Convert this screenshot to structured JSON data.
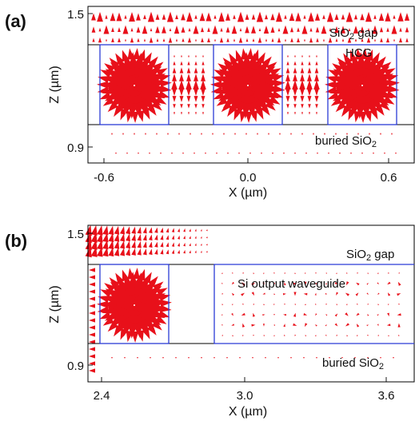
{
  "panel_a": {
    "letter": "(a)",
    "xlabel": "X (µm)",
    "ylabel": "Z (µm)",
    "xticks": [
      "-0.6",
      "0.0",
      "0.6"
    ],
    "yticks": [
      "1.5",
      "0.9"
    ],
    "regions": {
      "gap": "SiO",
      "gap_sub": "2",
      "gap_rest": " gap",
      "hcg": "HCG",
      "buried": "buried SiO",
      "buried_sub": "2"
    }
  },
  "panel_b": {
    "letter": "(b)",
    "xlabel": "X (µm)",
    "ylabel": "Z (µm)",
    "xticks": [
      "2.4",
      "3.0",
      "3.6"
    ],
    "yticks": [
      "1.5",
      "0.9"
    ],
    "regions": {
      "gap": "SiO",
      "gap_sub": "2",
      "gap_rest": " gap",
      "waveguide": "Si output waveguide",
      "buried": "buried SiO",
      "buried_sub": "2"
    }
  },
  "colors": {
    "vectors": "#e8101a",
    "structure": "#2b3bd6",
    "frame": "#000000"
  }
}
